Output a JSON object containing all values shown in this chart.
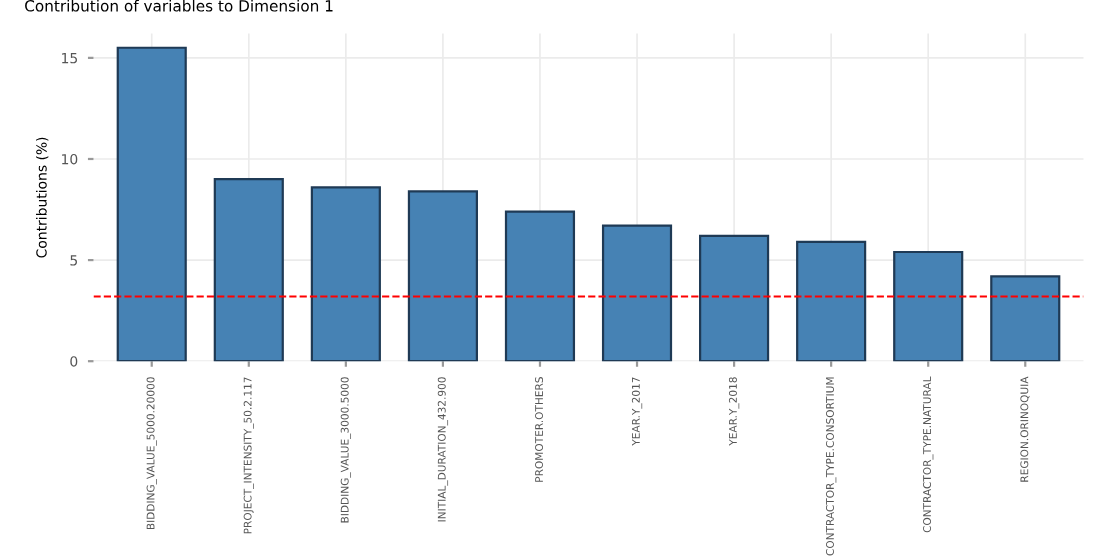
{
  "chart_data": {
    "type": "bar",
    "title": "Contribution of variables to Dimension 1",
    "ylabel": "Contributions (%)",
    "categories": [
      "BIDDING_VALUE_5000.20000",
      "PROJECT_INTENSITY_50.2.117",
      "BIDDING_VALUE_3000.5000",
      "INITIAL_DURATION_432.900",
      "PROMOTER.OTHERS",
      "YEAR.Y_2017",
      "YEAR.Y_2018",
      "CONTRACTOR_TYPE.CONSORTIUM",
      "CONTRACTOR_TYPE.NATURAL",
      "REGION.ORINOQUIA"
    ],
    "values": [
      15.5,
      9.0,
      8.6,
      8.4,
      7.4,
      6.7,
      6.2,
      5.9,
      5.4,
      4.2
    ],
    "color": "#4682b4",
    "ylim": [
      0,
      16.2
    ],
    "yticks": [
      0,
      5,
      10,
      15
    ],
    "grid": true,
    "ref_lines": [
      {
        "axis": "y",
        "value": 3.2,
        "color": "#ff0000",
        "line_style": "dashed"
      }
    ]
  }
}
